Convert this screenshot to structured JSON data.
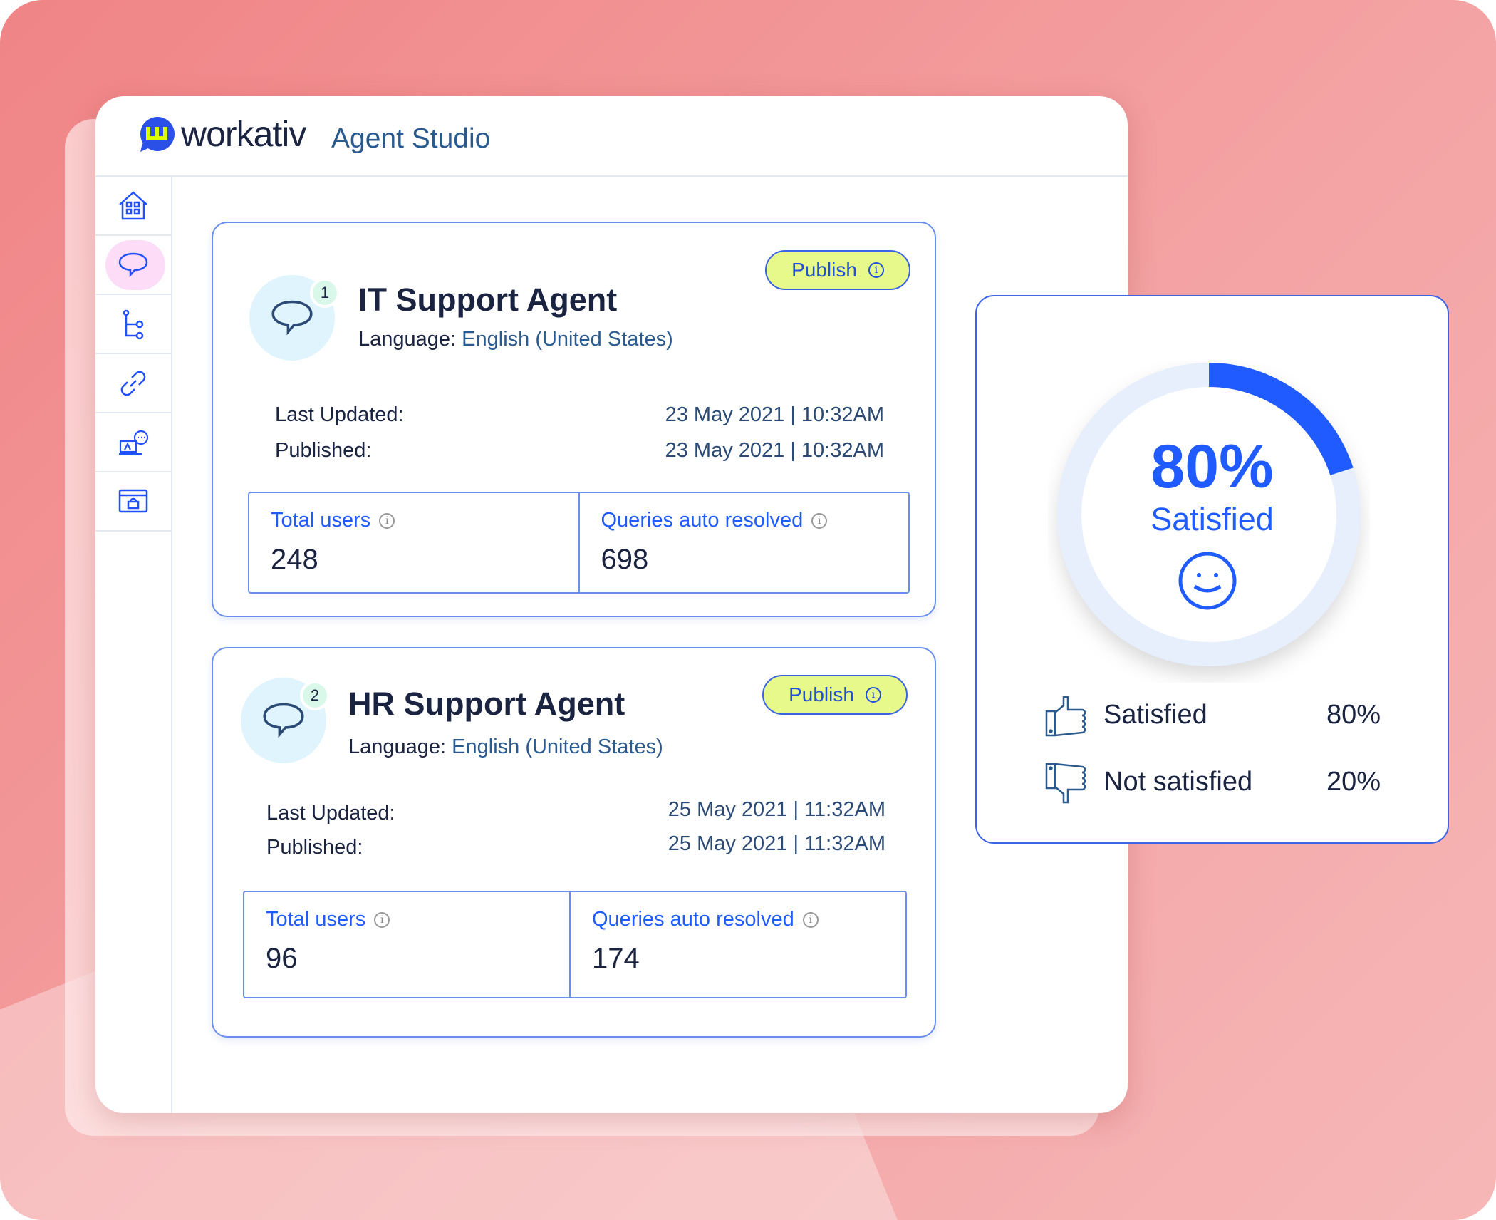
{
  "app": {
    "brand": "workativ",
    "product": "Agent Studio"
  },
  "colors": {
    "accent": "#1f5bff",
    "publish_bg": "#e6f98a",
    "active_nav": "#fddcf7",
    "logo_yellow": "#d9ff00"
  },
  "sidebar": {
    "items": [
      {
        "icon": "home-icon"
      },
      {
        "icon": "chat-bubble-icon",
        "active": true
      },
      {
        "icon": "flow-tree-icon"
      },
      {
        "icon": "link-icon"
      },
      {
        "icon": "live-agent-icon"
      },
      {
        "icon": "marketplace-icon"
      }
    ]
  },
  "agents": [
    {
      "index": "1",
      "name": "IT Support Agent",
      "language_label": "Language:",
      "language": "English (United States)",
      "publish_label": "Publish",
      "last_updated_label": "Last Updated:",
      "last_updated": "23 May 2021 | 10:32AM",
      "published_label": "Published:",
      "published": "23 May 2021 | 10:32AM",
      "total_users_label": "Total users",
      "total_users": "248",
      "queries_label": "Queries auto resolved",
      "queries": "698"
    },
    {
      "index": "2",
      "name": "HR Support Agent",
      "language_label": "Language:",
      "language": "English (United States)",
      "publish_label": "Publish",
      "last_updated_label": "Last Updated:",
      "last_updated": "25 May 2021 | 11:32AM",
      "published_label": "Published:",
      "published": "25 May 2021 | 11:32AM",
      "total_users_label": "Total users",
      "total_users": "96",
      "queries_label": "Queries auto resolved",
      "queries": "174"
    }
  ],
  "satisfaction": {
    "headline": "80%",
    "headline_label": "Satisfied",
    "gauge_arc_percent": 20,
    "rows": [
      {
        "icon": "thumbs-up-icon",
        "label": "Satisfied",
        "value": "80%"
      },
      {
        "icon": "thumbs-down-icon",
        "label": "Not satisfied",
        "value": "20%"
      }
    ]
  }
}
